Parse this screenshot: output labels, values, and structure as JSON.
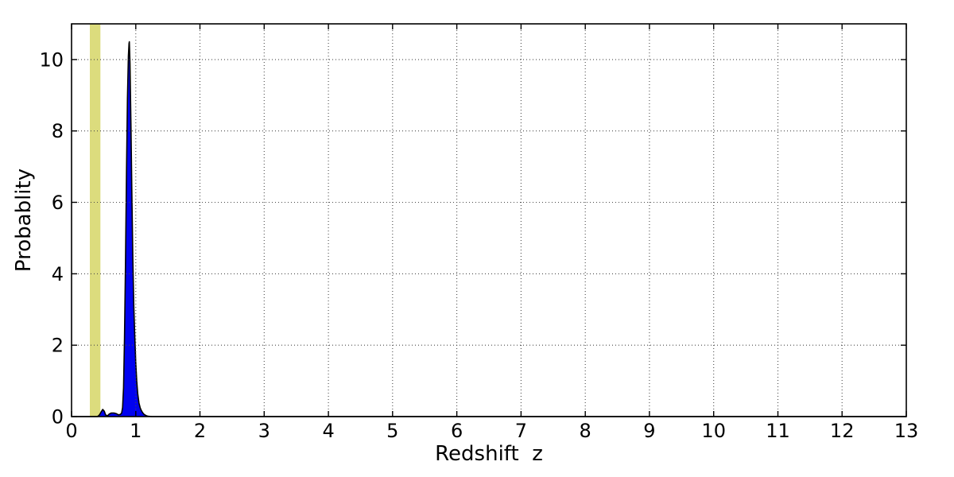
{
  "chart_data": {
    "type": "area",
    "title": "",
    "xlabel": "Redshift  z",
    "ylabel": "Probablity",
    "xlim": [
      0,
      13
    ],
    "ylim": [
      0,
      11
    ],
    "xticks": [
      0,
      1,
      2,
      3,
      4,
      5,
      6,
      7,
      8,
      9,
      10,
      11,
      12,
      13
    ],
    "yticks": [
      0,
      2,
      4,
      6,
      8,
      10
    ],
    "grid": true,
    "grid_style": "dotted",
    "legend": "none",
    "frame_color": "#000000",
    "background_color": "#ffffff",
    "peak": {
      "z": 0.9,
      "probability": 10.5
    },
    "annotations": [
      {
        "name": "vertical-highlight-band",
        "type": "vspan",
        "x0": 0.285,
        "x1": 0.45,
        "color": "#dcdc7d"
      }
    ],
    "series": [
      {
        "name": "redshift-probability-distribution",
        "type": "filled-line",
        "line_color": "#000000",
        "fill_color": "#0102f0",
        "points": [
          [
            0.0,
            0.0
          ],
          [
            0.3,
            0.0
          ],
          [
            0.4,
            0.0
          ],
          [
            0.42,
            0.02
          ],
          [
            0.44,
            0.06
          ],
          [
            0.46,
            0.13
          ],
          [
            0.485,
            0.2
          ],
          [
            0.51,
            0.15
          ],
          [
            0.53,
            0.05
          ],
          [
            0.56,
            0.02
          ],
          [
            0.585,
            0.07
          ],
          [
            0.62,
            0.1
          ],
          [
            0.66,
            0.1
          ],
          [
            0.7,
            0.08
          ],
          [
            0.73,
            0.05
          ],
          [
            0.76,
            0.06
          ],
          [
            0.78,
            0.1
          ],
          [
            0.795,
            0.25
          ],
          [
            0.81,
            0.8
          ],
          [
            0.825,
            2.2
          ],
          [
            0.84,
            4.2
          ],
          [
            0.855,
            6.8
          ],
          [
            0.87,
            8.9
          ],
          [
            0.885,
            10.1
          ],
          [
            0.895,
            10.45
          ],
          [
            0.9,
            10.5
          ],
          [
            0.91,
            9.9
          ],
          [
            0.925,
            8.2
          ],
          [
            0.94,
            6.2
          ],
          [
            0.955,
            4.4
          ],
          [
            0.97,
            3.1
          ],
          [
            0.985,
            2.2
          ],
          [
            1.0,
            1.5
          ],
          [
            1.015,
            1.0
          ],
          [
            1.03,
            0.65
          ],
          [
            1.05,
            0.38
          ],
          [
            1.07,
            0.24
          ],
          [
            1.09,
            0.16
          ],
          [
            1.11,
            0.1
          ],
          [
            1.13,
            0.06
          ],
          [
            1.16,
            0.03
          ],
          [
            1.19,
            0.01
          ],
          [
            1.25,
            0.0
          ],
          [
            2.0,
            0.0
          ],
          [
            13.0,
            0.0
          ]
        ]
      }
    ]
  }
}
